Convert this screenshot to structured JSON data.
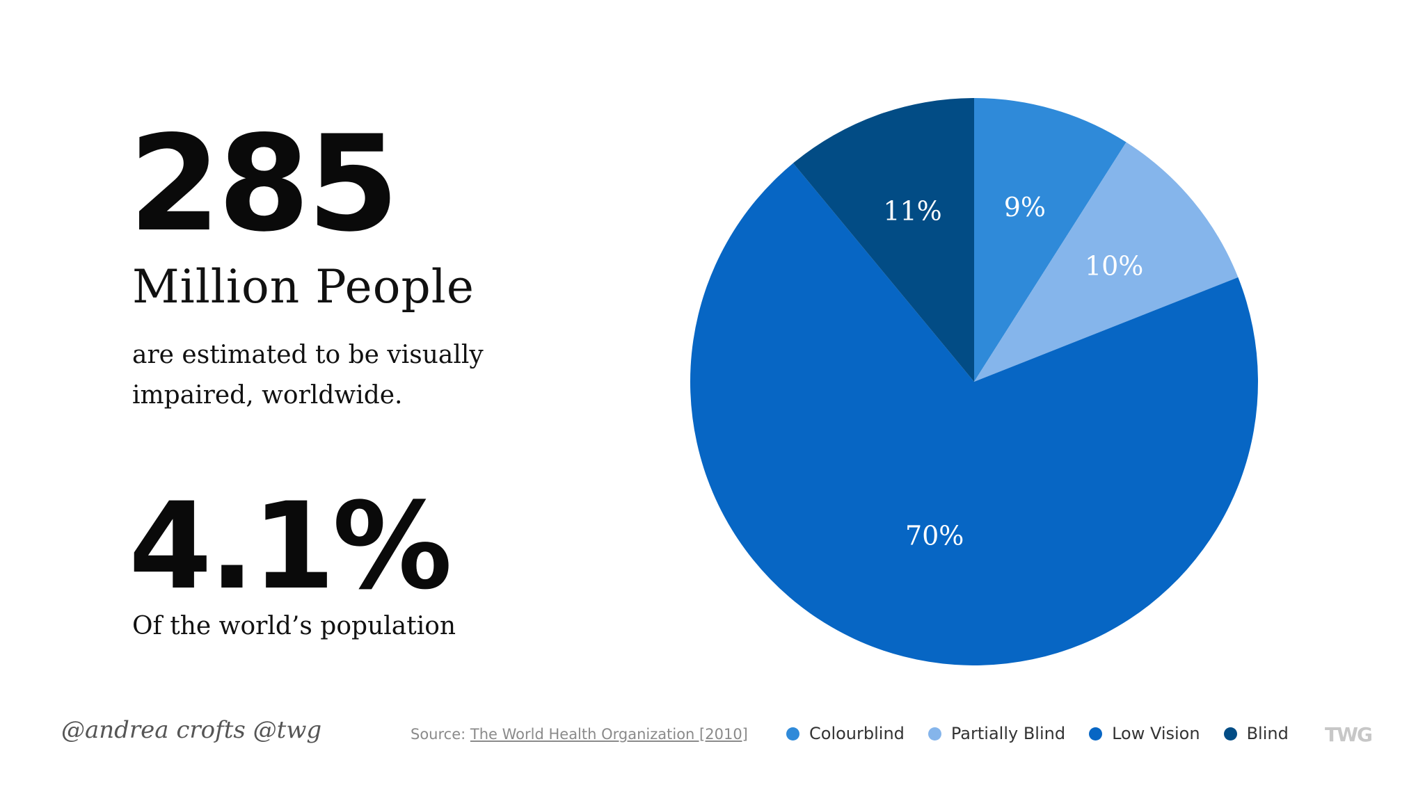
{
  "stats": {
    "number": "285",
    "unit": "Million People",
    "description": "are estimated to be visually impaired, worldwide.",
    "percent": "4.1%",
    "percent_description": "Of the world’s population"
  },
  "chart_data": {
    "type": "pie",
    "categories": [
      "Colourblind",
      "Partially Blind",
      "Low Vision",
      "Blind"
    ],
    "values": [
      9,
      10,
      70,
      11
    ],
    "labels": [
      "9%",
      "10%",
      "70%",
      "11%"
    ],
    "colors": [
      "#2f8ad9",
      "#85b5eb",
      "#0766c4",
      "#024c85"
    ],
    "start_angle_deg": 0,
    "direction": "clockwise",
    "legend_position": "bottom"
  },
  "footer": {
    "signature": "@andrea crofts  @twg",
    "source_prefix": "Source: ",
    "source_link": "The World Health Organization [2010]",
    "logo": "TWG"
  }
}
